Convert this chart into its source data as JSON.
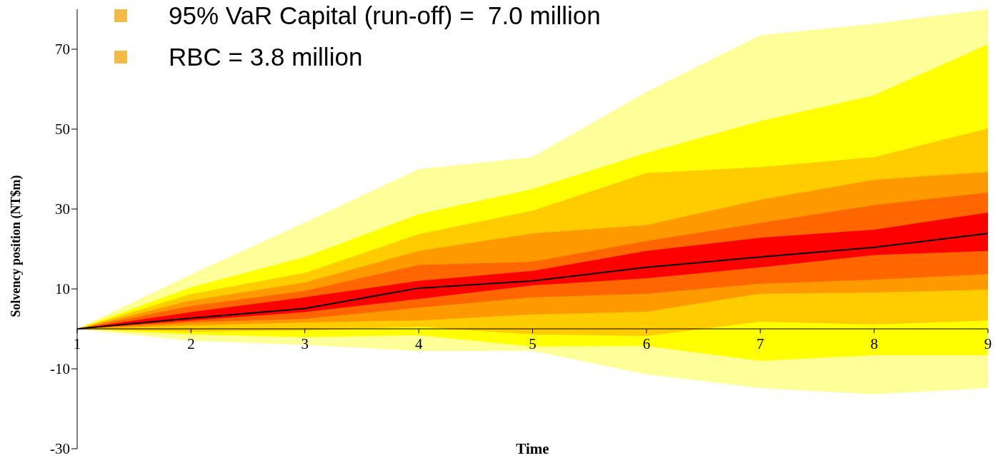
{
  "chart_data": {
    "type": "area",
    "xlabel": "Time",
    "ylabel": "Solvency position (NT$m)",
    "annotations": [
      "95% VaR Capital (run-off) =  7.0 million",
      "RBC = 3.8 million"
    ],
    "x": [
      1,
      2,
      3,
      4,
      5,
      6,
      7,
      8,
      9
    ],
    "xlim": [
      1,
      9
    ],
    "xticks": [
      1,
      2,
      3,
      4,
      5,
      6,
      7,
      8,
      9
    ],
    "ylim": [
      -30,
      80
    ],
    "yticks": [
      -30,
      -10,
      10,
      30,
      50,
      70
    ],
    "series": [
      {
        "color": "#ffff99",
        "values": [
          null,
          null,
          null,
          null,
          null,
          null,
          null,
          null,
          null
        ],
        "lower": [
          0,
          -3,
          -4,
          -5.5,
          -5.5,
          -11.4,
          -14.8,
          -16.4,
          -14.8
        ],
        "upper": [
          0,
          13.6,
          26.6,
          40,
          43,
          59.3,
          73.5,
          76.4,
          80
        ]
      },
      {
        "color": "#ffff00",
        "values": [
          null,
          null,
          null,
          null,
          null,
          null,
          null,
          null,
          null
        ],
        "lower": [
          0,
          -1.4,
          -2.1,
          -1.6,
          -4.4,
          -4.3,
          -8,
          -6.6,
          -6.6
        ],
        "upper": [
          0,
          10.4,
          18,
          28.7,
          35,
          44,
          52,
          58.5,
          71.2
        ]
      },
      {
        "color": "#ffcc00",
        "values": [
          null,
          null,
          null,
          null,
          null,
          null,
          null,
          null,
          null
        ],
        "lower": [
          0,
          -0.7,
          -0.4,
          0.5,
          -1.4,
          -1.8,
          1.8,
          1.1,
          2.1
        ],
        "upper": [
          0,
          8.7,
          14,
          23.7,
          29.6,
          39,
          40.5,
          43,
          50.2
        ]
      },
      {
        "color": "#ff9900",
        "values": [
          null,
          null,
          null,
          null,
          null,
          null,
          null,
          null,
          null
        ],
        "lower": [
          0,
          0.9,
          1.6,
          2.1,
          3.6,
          4.3,
          8.8,
          9.1,
          9.8
        ],
        "upper": [
          0,
          7.1,
          11.6,
          19.5,
          23.9,
          26,
          32.3,
          37.3,
          39.3
        ]
      },
      {
        "color": "#ff6600",
        "values": [
          null,
          null,
          null,
          null,
          null,
          null,
          null,
          null,
          null
        ],
        "lower": [
          0,
          1.6,
          2.5,
          5.3,
          7.9,
          8.8,
          11.3,
          12.3,
          13.7
        ],
        "upper": [
          0,
          5.7,
          9.5,
          16,
          16.8,
          22,
          26.5,
          31,
          34.1
        ]
      },
      {
        "color": "#ff0000",
        "values": [
          null,
          null,
          null,
          null,
          null,
          null,
          null,
          null,
          null
        ],
        "lower": [
          0,
          2.1,
          4.2,
          7.5,
          10.9,
          12.7,
          15.4,
          18.5,
          19.5
        ],
        "upper": [
          0,
          4.2,
          7.9,
          12,
          14.5,
          19.5,
          22.8,
          24.8,
          29.1
        ]
      },
      {
        "type": "line",
        "color": "#000000",
        "values": [
          0,
          2.7,
          5.1,
          10.2,
          12,
          15.4,
          18,
          20.4,
          23.9
        ]
      }
    ]
  }
}
